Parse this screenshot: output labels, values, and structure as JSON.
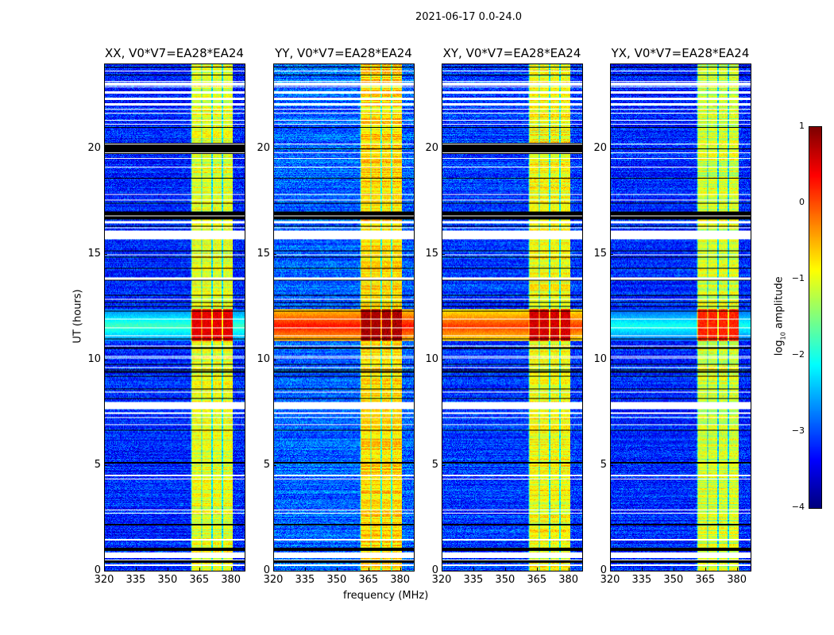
{
  "suptitle": "2021-06-17 0.0-24.0",
  "xlabel": "frequency (MHz)",
  "ylabel": "UT (hours)",
  "colorbar": {
    "label_prefix": "log",
    "label_sub": "10",
    "label_suffix": " amplitude",
    "range": [
      -4,
      1
    ],
    "ticks": [
      1,
      0,
      -1,
      -2,
      -3,
      -4
    ],
    "tick_labels": [
      "1",
      "0",
      "−1",
      "−2",
      "−3",
      "−4"
    ],
    "colormap": "jet"
  },
  "chart_data": [
    {
      "type": "heatmap",
      "title": "XX, V0*V7=EA28*EA24",
      "xlim": [
        320,
        386.5
      ],
      "ylim": [
        0,
        24
      ],
      "xticks": [
        320,
        335,
        350,
        365,
        380
      ],
      "xtick_labels": [
        "320",
        "335",
        "350",
        "365",
        "380"
      ],
      "yticks": [
        0,
        5,
        10,
        15,
        20
      ],
      "ytick_labels": [
        "0",
        "5",
        "10",
        "15",
        "20"
      ],
      "background_level": -3.2,
      "band_level": -1.0,
      "rfi_offband_level": -1.8,
      "rfi_band_level": 0.5,
      "black_block_20h": true
    },
    {
      "type": "heatmap",
      "title": "YY, V0*V7=EA28*EA24",
      "xlim": [
        320,
        386.5
      ],
      "ylim": [
        0,
        24
      ],
      "xticks": [
        320,
        335,
        350,
        365,
        380
      ],
      "xtick_labels": [
        "320",
        "335",
        "350",
        "365",
        "380"
      ],
      "yticks": [
        0,
        5,
        10,
        15,
        20
      ],
      "ytick_labels": [
        "0",
        "5",
        "10",
        "15",
        "20"
      ],
      "background_level": -2.9,
      "band_level": -0.7,
      "rfi_offband_level": 0.3,
      "rfi_band_level": 0.8,
      "black_block_20h": false
    },
    {
      "type": "heatmap",
      "title": "XY, V0*V7=EA28*EA24",
      "xlim": [
        320,
        386.5
      ],
      "ylim": [
        0,
        24
      ],
      "xticks": [
        320,
        335,
        350,
        365,
        380
      ],
      "xtick_labels": [
        "320",
        "335",
        "350",
        "365",
        "380"
      ],
      "yticks": [
        0,
        5,
        10,
        15,
        20
      ],
      "ytick_labels": [
        "0",
        "5",
        "10",
        "15",
        "20"
      ],
      "background_level": -3.1,
      "band_level": -0.9,
      "rfi_offband_level": 0.1,
      "rfi_band_level": 0.6,
      "black_block_20h": true
    },
    {
      "type": "heatmap",
      "title": "YX, V0*V7=EA28*EA24",
      "xlim": [
        320,
        386.5
      ],
      "ylim": [
        0,
        24
      ],
      "xticks": [
        320,
        335,
        350,
        365,
        380
      ],
      "xtick_labels": [
        "320",
        "335",
        "350",
        "365",
        "380"
      ],
      "yticks": [
        0,
        5,
        10,
        15,
        20
      ],
      "ytick_labels": [
        "0",
        "5",
        "10",
        "15",
        "20"
      ],
      "background_level": -3.2,
      "band_level": -1.1,
      "rfi_offband_level": -2.0,
      "rfi_band_level": 0.2,
      "black_block_20h": false
    }
  ],
  "model": {
    "band_mhz": [
      361,
      381
    ],
    "subband_edges_mhz": [
      366,
      371,
      376
    ],
    "rfi_event_hours": [
      10.9,
      12.4
    ],
    "white_flag_hours": [
      [
        23.0,
        23.12
      ],
      [
        22.6,
        22.72
      ],
      [
        22.3,
        22.42
      ],
      [
        22.05,
        22.16
      ],
      [
        16.45,
        16.55
      ],
      [
        15.7,
        16.1
      ],
      [
        13.8,
        13.9
      ],
      [
        7.65,
        8.0
      ],
      [
        7.42,
        7.5
      ],
      [
        4.47,
        4.53
      ],
      [
        1.42,
        1.5
      ],
      [
        0.6,
        0.85
      ],
      [
        0.22,
        0.3
      ]
    ],
    "black_flag_hours": [
      [
        16.65,
        17.0
      ],
      [
        10.5,
        10.6
      ],
      [
        5.07,
        5.13
      ],
      [
        1.02,
        1.08
      ],
      [
        0.42,
        0.48
      ]
    ],
    "black_block_hours": [
      19.75,
      20.3
    ]
  }
}
